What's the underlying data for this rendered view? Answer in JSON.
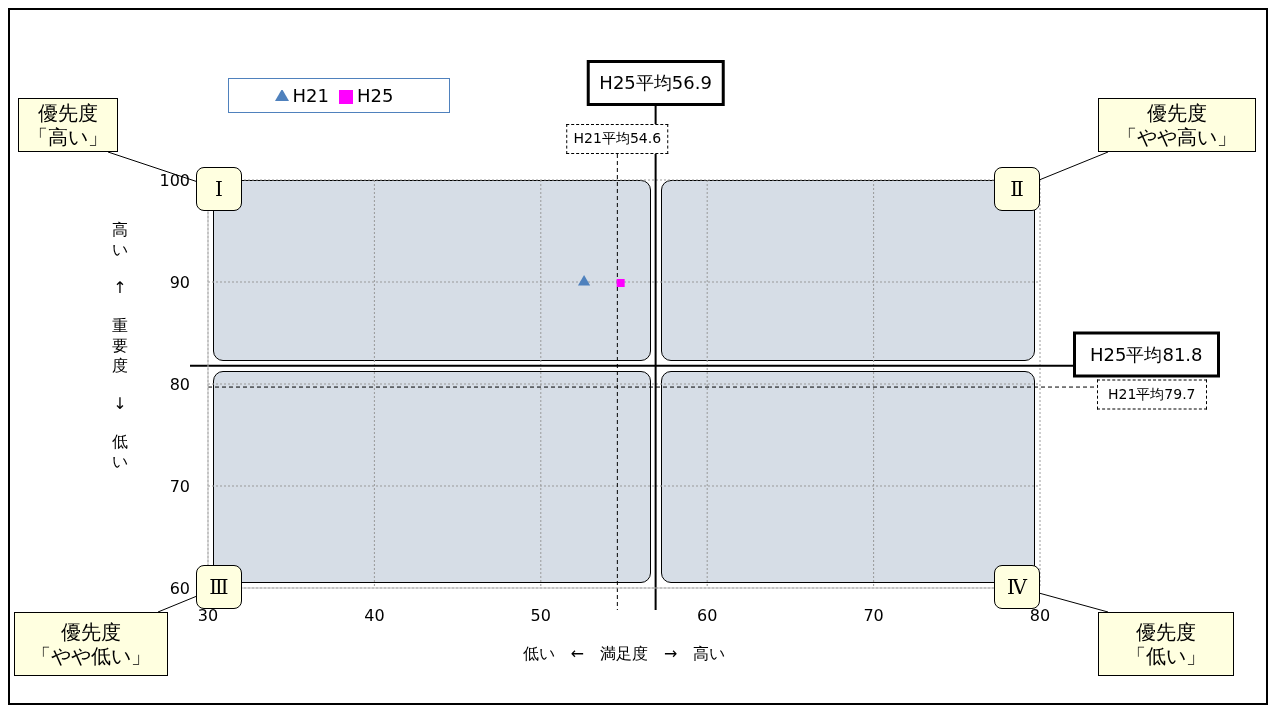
{
  "chart_data": {
    "type": "scatter",
    "xlabel": "低い　←　満足度　→　高い",
    "ylabel": "高い　↑　重要度　↓　低い",
    "xlim": [
      30,
      80
    ],
    "xticks": [
      30,
      40,
      50,
      60,
      70,
      80
    ],
    "ylim": [
      60,
      100
    ],
    "yticks": [
      60,
      70,
      80,
      90,
      100
    ],
    "grid": true,
    "legend": "top left",
    "series": [
      {
        "name": "H21",
        "color": "#4f81bd",
        "marker": "triangle",
        "x": [
          52.6
        ],
        "values": [
          90
        ]
      },
      {
        "name": "H25",
        "color": "#ff00ff",
        "marker": "square",
        "x": [
          54.8
        ],
        "values": [
          89.9
        ]
      }
    ],
    "ref_lines": [
      {
        "axis": "x",
        "value": 56.9,
        "label": "H25平均56.9",
        "color": "#000000",
        "line_style": "solid"
      },
      {
        "axis": "x",
        "value": 54.6,
        "label": "H21平均54.6",
        "color": "#000000",
        "line_style": "dashed"
      },
      {
        "axis": "y",
        "value": 81.8,
        "label": "H25平均81.8",
        "color": "#000000",
        "line_style": "solid"
      },
      {
        "axis": "y",
        "value": 79.7,
        "label": "H21平均79.7",
        "color": "#000000",
        "line_style": "dashed"
      }
    ],
    "annotations": [
      "Ⅰ",
      "Ⅱ",
      "Ⅲ",
      "Ⅳ",
      "優先度「高い」",
      "優先度「やや高い」",
      "優先度「やや低い」",
      "優先度「低い」"
    ]
  }
}
